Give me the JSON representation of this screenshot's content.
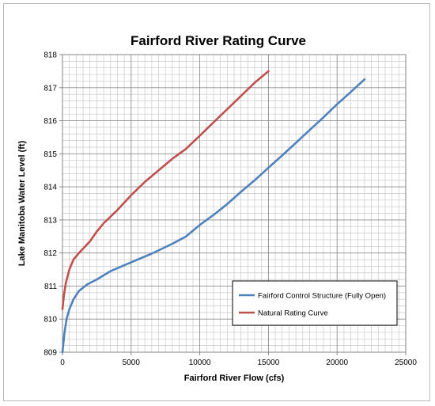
{
  "chart_data": {
    "type": "line",
    "title": "Fairford River Rating Curve",
    "xlabel": "Fairford River Flow (cfs)",
    "ylabel": "Lake Manitoba Water Level (ft)",
    "xlim": [
      0,
      25000
    ],
    "ylim": [
      809,
      818
    ],
    "x_ticks": [
      0,
      5000,
      10000,
      15000,
      20000,
      25000
    ],
    "y_ticks": [
      809,
      810,
      811,
      812,
      813,
      814,
      815,
      816,
      817,
      818
    ],
    "x_minor_step": 500,
    "y_minor_step": 0.2,
    "grid": true,
    "legend_position": "bottom-right",
    "series": [
      {
        "name": "Fairford Control Structure (Fully Open)",
        "color": "#4f81bd",
        "points": [
          [
            0,
            809.0
          ],
          [
            150,
            809.6
          ],
          [
            300,
            810.0
          ],
          [
            500,
            810.3
          ],
          [
            800,
            810.6
          ],
          [
            1200,
            810.85
          ],
          [
            1800,
            811.05
          ],
          [
            2500,
            811.2
          ],
          [
            3500,
            811.45
          ],
          [
            5000,
            811.72
          ],
          [
            6500,
            811.98
          ],
          [
            8000,
            812.28
          ],
          [
            9000,
            812.5
          ],
          [
            10000,
            812.85
          ],
          [
            11000,
            813.15
          ],
          [
            12000,
            813.48
          ],
          [
            13000,
            813.85
          ],
          [
            14000,
            814.2
          ],
          [
            15000,
            814.58
          ],
          [
            16000,
            814.95
          ],
          [
            17000,
            815.33
          ],
          [
            18000,
            815.72
          ],
          [
            19000,
            816.1
          ],
          [
            20000,
            816.5
          ],
          [
            21000,
            816.87
          ],
          [
            22000,
            817.25
          ]
        ]
      },
      {
        "name": "Natural Rating Curve",
        "color": "#c0504d",
        "points": [
          [
            0,
            810.3
          ],
          [
            100,
            810.7
          ],
          [
            250,
            811.1
          ],
          [
            500,
            811.5
          ],
          [
            800,
            811.8
          ],
          [
            1200,
            812.0
          ],
          [
            2000,
            812.35
          ],
          [
            2500,
            812.65
          ],
          [
            3000,
            812.9
          ],
          [
            4000,
            813.3
          ],
          [
            5000,
            813.75
          ],
          [
            6000,
            814.15
          ],
          [
            7000,
            814.5
          ],
          [
            8000,
            814.85
          ],
          [
            9000,
            815.15
          ],
          [
            10000,
            815.55
          ],
          [
            11000,
            815.95
          ],
          [
            12000,
            816.35
          ],
          [
            13000,
            816.75
          ],
          [
            14000,
            817.15
          ],
          [
            15000,
            817.5
          ]
        ]
      }
    ]
  }
}
